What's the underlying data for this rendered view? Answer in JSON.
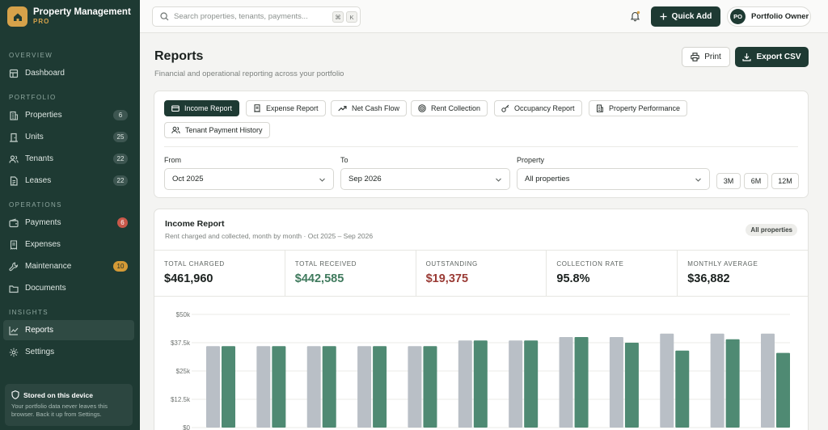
{
  "app": {
    "name": "Property Management",
    "tier": "PRO"
  },
  "sidebar": {
    "sections": {
      "overview": "OVERVIEW",
      "portfolio": "PORTFOLIO",
      "operations": "OPERATIONS",
      "insights": "INSIGHTS"
    },
    "items": [
      {
        "label": "Dashboard",
        "icon": "dashboard-icon"
      },
      {
        "label": "Properties",
        "icon": "building-icon",
        "count": "6"
      },
      {
        "label": "Units",
        "icon": "door-icon",
        "count": "25"
      },
      {
        "label": "Tenants",
        "icon": "users-icon",
        "count": "22"
      },
      {
        "label": "Leases",
        "icon": "file-icon",
        "count": "22"
      },
      {
        "label": "Payments",
        "icon": "wallet-icon",
        "count": "6"
      },
      {
        "label": "Expenses",
        "icon": "receipt-icon"
      },
      {
        "label": "Maintenance",
        "icon": "wrench-icon",
        "count": "10"
      },
      {
        "label": "Documents",
        "icon": "folder-icon"
      },
      {
        "label": "Reports",
        "icon": "chart-line-icon",
        "active": true
      },
      {
        "label": "Settings",
        "icon": "gear-icon"
      }
    ],
    "device_note": {
      "title": "Stored on this device",
      "line1": "Your portfolio data never leaves this",
      "line2": "browser. Back it up from Settings."
    }
  },
  "topbar": {
    "search_placeholder": "Search properties, tenants, payments...",
    "shortcut": [
      "⌘",
      "K"
    ],
    "quick_add": "Quick Add",
    "user": {
      "initials": "PO",
      "name": "Portfolio Owner"
    }
  },
  "page": {
    "title": "Reports",
    "subtitle": "Financial and operational reporting across your portfolio",
    "print": "Print",
    "export": "Export CSV"
  },
  "tabs": [
    {
      "label": "Income Report",
      "icon": "income-icon",
      "active": true
    },
    {
      "label": "Expense Report",
      "icon": "receipt-icon"
    },
    {
      "label": "Net Cash Flow",
      "icon": "trend-up-icon"
    },
    {
      "label": "Rent Collection",
      "icon": "target-icon"
    },
    {
      "label": "Occupancy Report",
      "icon": "key-icon"
    },
    {
      "label": "Property Performance",
      "icon": "building-icon"
    },
    {
      "label": "Tenant Payment History",
      "icon": "users-icon"
    }
  ],
  "filters": {
    "from": {
      "label": "From",
      "value": "Oct 2025"
    },
    "to": {
      "label": "To",
      "value": "Sep 2026"
    },
    "property": {
      "label": "Property",
      "value": "All properties"
    },
    "ranges": [
      "3M",
      "6M",
      "12M"
    ]
  },
  "report": {
    "title": "Income Report",
    "subtitle": "Rent charged and collected, month by month · Oct 2025 – Sep 2026",
    "scope": "All properties",
    "stats": [
      {
        "label": "TOTAL CHARGED",
        "value": "$461,960"
      },
      {
        "label": "TOTAL RECEIVED",
        "value": "$442,585"
      },
      {
        "label": "OUTSTANDING",
        "value": "$19,375"
      },
      {
        "label": "COLLECTION RATE",
        "value": "95.8%"
      },
      {
        "label": "MONTHLY AVERAGE",
        "value": "$36,882"
      }
    ]
  },
  "colors": {
    "accent": "#1e3a33",
    "charged": "#b9bfc6",
    "received": "#4f8a73",
    "gold": "#d6a24a"
  },
  "chart_data": {
    "type": "bar",
    "yticks": [
      "$50k",
      "$37.5k",
      "$25k",
      "$12.5k",
      "$0"
    ],
    "ylim": [
      0,
      50000
    ],
    "series": [
      {
        "values": [
          36000,
          36000,
          36000,
          36000,
          36000,
          38500,
          38500,
          40000,
          40000,
          41500,
          41500,
          41500
        ]
      },
      {
        "values": [
          36000,
          36000,
          36000,
          36000,
          36000,
          38500,
          38500,
          40000,
          37500,
          34000,
          39000,
          33000
        ]
      }
    ]
  }
}
